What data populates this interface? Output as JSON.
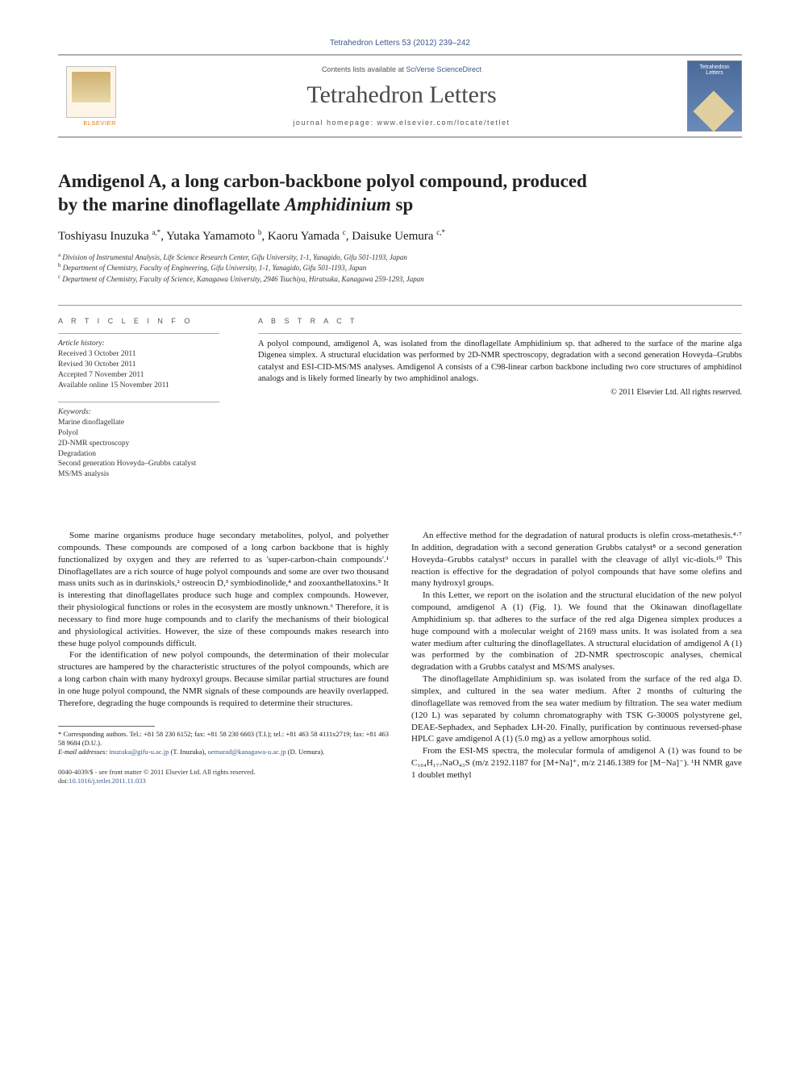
{
  "citation": "Tetrahedron Letters 53 (2012) 239–242",
  "header": {
    "contents_prefix": "Contents lists available at ",
    "contents_link": "SciVerse ScienceDirect",
    "journal": "Tetrahedron Letters",
    "homepage": "journal homepage: www.elsevier.com/locate/tetlet",
    "publisher": "ELSEVIER"
  },
  "title_line1": "Amdigenol A, a long carbon-backbone polyol compound, produced",
  "title_line2_pre": "by the marine dinoflagellate ",
  "title_line2_em": "Amphidinium",
  "title_line2_post": " sp",
  "authors_html": "Toshiyasu Inuzuka <sup>a,*</sup>, Yutaka Yamamoto <sup>b</sup>, Kaoru Yamada <sup>c</sup>, Daisuke Uemura <sup>c,*</sup>",
  "affiliations": [
    "a Division of Instrumental Analysis, Life Science Research Center, Gifu University, 1-1, Yanagido, Gifu 501-1193, Japan",
    "b Department of Chemistry, Faculty of Engineering, Gifu University, 1-1, Yanagido, Gifu 501-1193, Japan",
    "c Department of Chemistry, Faculty of Science, Kanagawa University, 2946 Tsuchiya, Hiratsuka, Kanagawa 259-1293, Japan"
  ],
  "article_info": {
    "label": "A R T I C L E   I N F O",
    "history_label": "Article history:",
    "history": [
      "Received 3 October 2011",
      "Revised 30 October 2011",
      "Accepted 7 November 2011",
      "Available online 15 November 2011"
    ],
    "keywords_label": "Keywords:",
    "keywords": [
      "Marine dinoflagellate",
      "Polyol",
      "2D-NMR spectroscopy",
      "Degradation",
      "Second generation Hoveyda–Grubbs catalyst",
      "MS/MS analysis"
    ]
  },
  "abstract": {
    "label": "A B S T R A C T",
    "text": "A polyol compound, amdigenol A, was isolated from the dinoflagellate Amphidinium sp. that adhered to the surface of the marine alga Digenea simplex. A structural elucidation was performed by 2D-NMR spectroscopy, degradation with a second generation Hoveyda–Grubbs catalyst and ESI-CID-MS/MS analyses. Amdigenol A consists of a C98-linear carbon backbone including two core structures of amphidinol analogs and is likely formed linearly by two amphidinol analogs.",
    "copyright": "© 2011 Elsevier Ltd. All rights reserved."
  },
  "body": {
    "col1": [
      "Some marine organisms produce huge secondary metabolites, polyol, and polyether compounds. These compounds are composed of a long carbon backbone that is highly functionalized by oxygen and they are referred to as 'super-carbon-chain compounds'.¹ Dinoflagellates are a rich source of huge polyol compounds and some are over two thousand mass units such as in durinskiols,² ostreocin D,³ symbiodinolide,⁴ and zooxanthellatoxins.⁵ It is interesting that dinoflagellates produce such huge and complex compounds. However, their physiological functions or roles in the ecosystem are mostly unknown.⁶ Therefore, it is necessary to find more huge compounds and to clarify the mechanisms of their biological and physiological activities. However, the size of these compounds makes research into these huge polyol compounds difficult.",
      "For the identification of new polyol compounds, the determination of their molecular structures are hampered by the characteristic structures of the polyol compounds, which are a long carbon chain with many hydroxyl groups. Because similar partial structures are found in one huge polyol compound, the NMR signals of these compounds are heavily overlapped. Therefore, degrading the huge compounds is required to determine their structures."
    ],
    "col2": [
      "An effective method for the degradation of natural products is olefin cross-metathesis.⁴·⁷ In addition, degradation with a second generation Grubbs catalyst⁸ or a second generation Hoveyda–Grubbs catalyst⁹ occurs in parallel with the cleavage of allyl vic-diols.¹⁰ This reaction is effective for the degradation of polyol compounds that have some olefins and many hydroxyl groups.",
      "In this Letter, we report on the isolation and the structural elucidation of the new polyol compound, amdigenol A (1) (Fig. 1). We found that the Okinawan dinoflagellate Amphidinium sp. that adheres to the surface of the red alga Digenea simplex produces a huge compound with a molecular weight of 2169 mass units. It was isolated from a sea water medium after culturing the dinoflagellates. A structural elucidation of amdigenol A (1) was performed by the combination of 2D-NMR spectroscopic analyses, chemical degradation with a Grubbs catalyst and MS/MS analyses.",
      "The dinoflagellate Amphidinium sp. was isolated from the surface of the red alga D. simplex, and cultured in the sea water medium. After 2 months of culturing the dinoflagellate was removed from the sea water medium by filtration. The sea water medium (120 L) was separated by column chromatography with TSK G-3000S polystyrene gel, DEAE-Sephadex, and Sephadex LH-20. Finally, purification by continuous reversed-phase HPLC gave amdigenol A (1) (5.0 mg) as a yellow amorphous solid.",
      "From the ESI-MS spectra, the molecular formula of amdigenol A (1) was found to be C₁₀₄H₁₇₇NaO₄₃S (m/z 2192.1187 for [M+Na]⁺, m/z 2146.1389 for [M−Na]⁻). ¹H NMR gave 1 doublet methyl"
    ]
  },
  "footnotes": {
    "corr": "* Corresponding authors. Tel.: +81 58 230 6152; fax: +81 58 230 6603 (T.I.); tel.: +81 463 58 4111x2719; fax: +81 463 58 9684 (D.U.).",
    "email_label": "E-mail addresses: ",
    "email1": "inuzuka@gifu-u.ac.jp",
    "email1_who": " (T. Inuzuka), ",
    "email2": "uemurad@kanagawa-u.ac.jp",
    "email2_who": " (D. Uemura)."
  },
  "footer": {
    "line1": "0040-4039/$ - see front matter © 2011 Elsevier Ltd. All rights reserved.",
    "doi_label": "doi:",
    "doi": "10.1016/j.tetlet.2011.11.033"
  },
  "colors": {
    "link": "#3a5a8a",
    "rule": "#999999",
    "text": "#1a1a1a",
    "orange": "#e67a00"
  },
  "fonts": {
    "body_size_pt": 11,
    "title_size_pt": 23,
    "journal_size_pt": 30,
    "small_pt": 9
  }
}
